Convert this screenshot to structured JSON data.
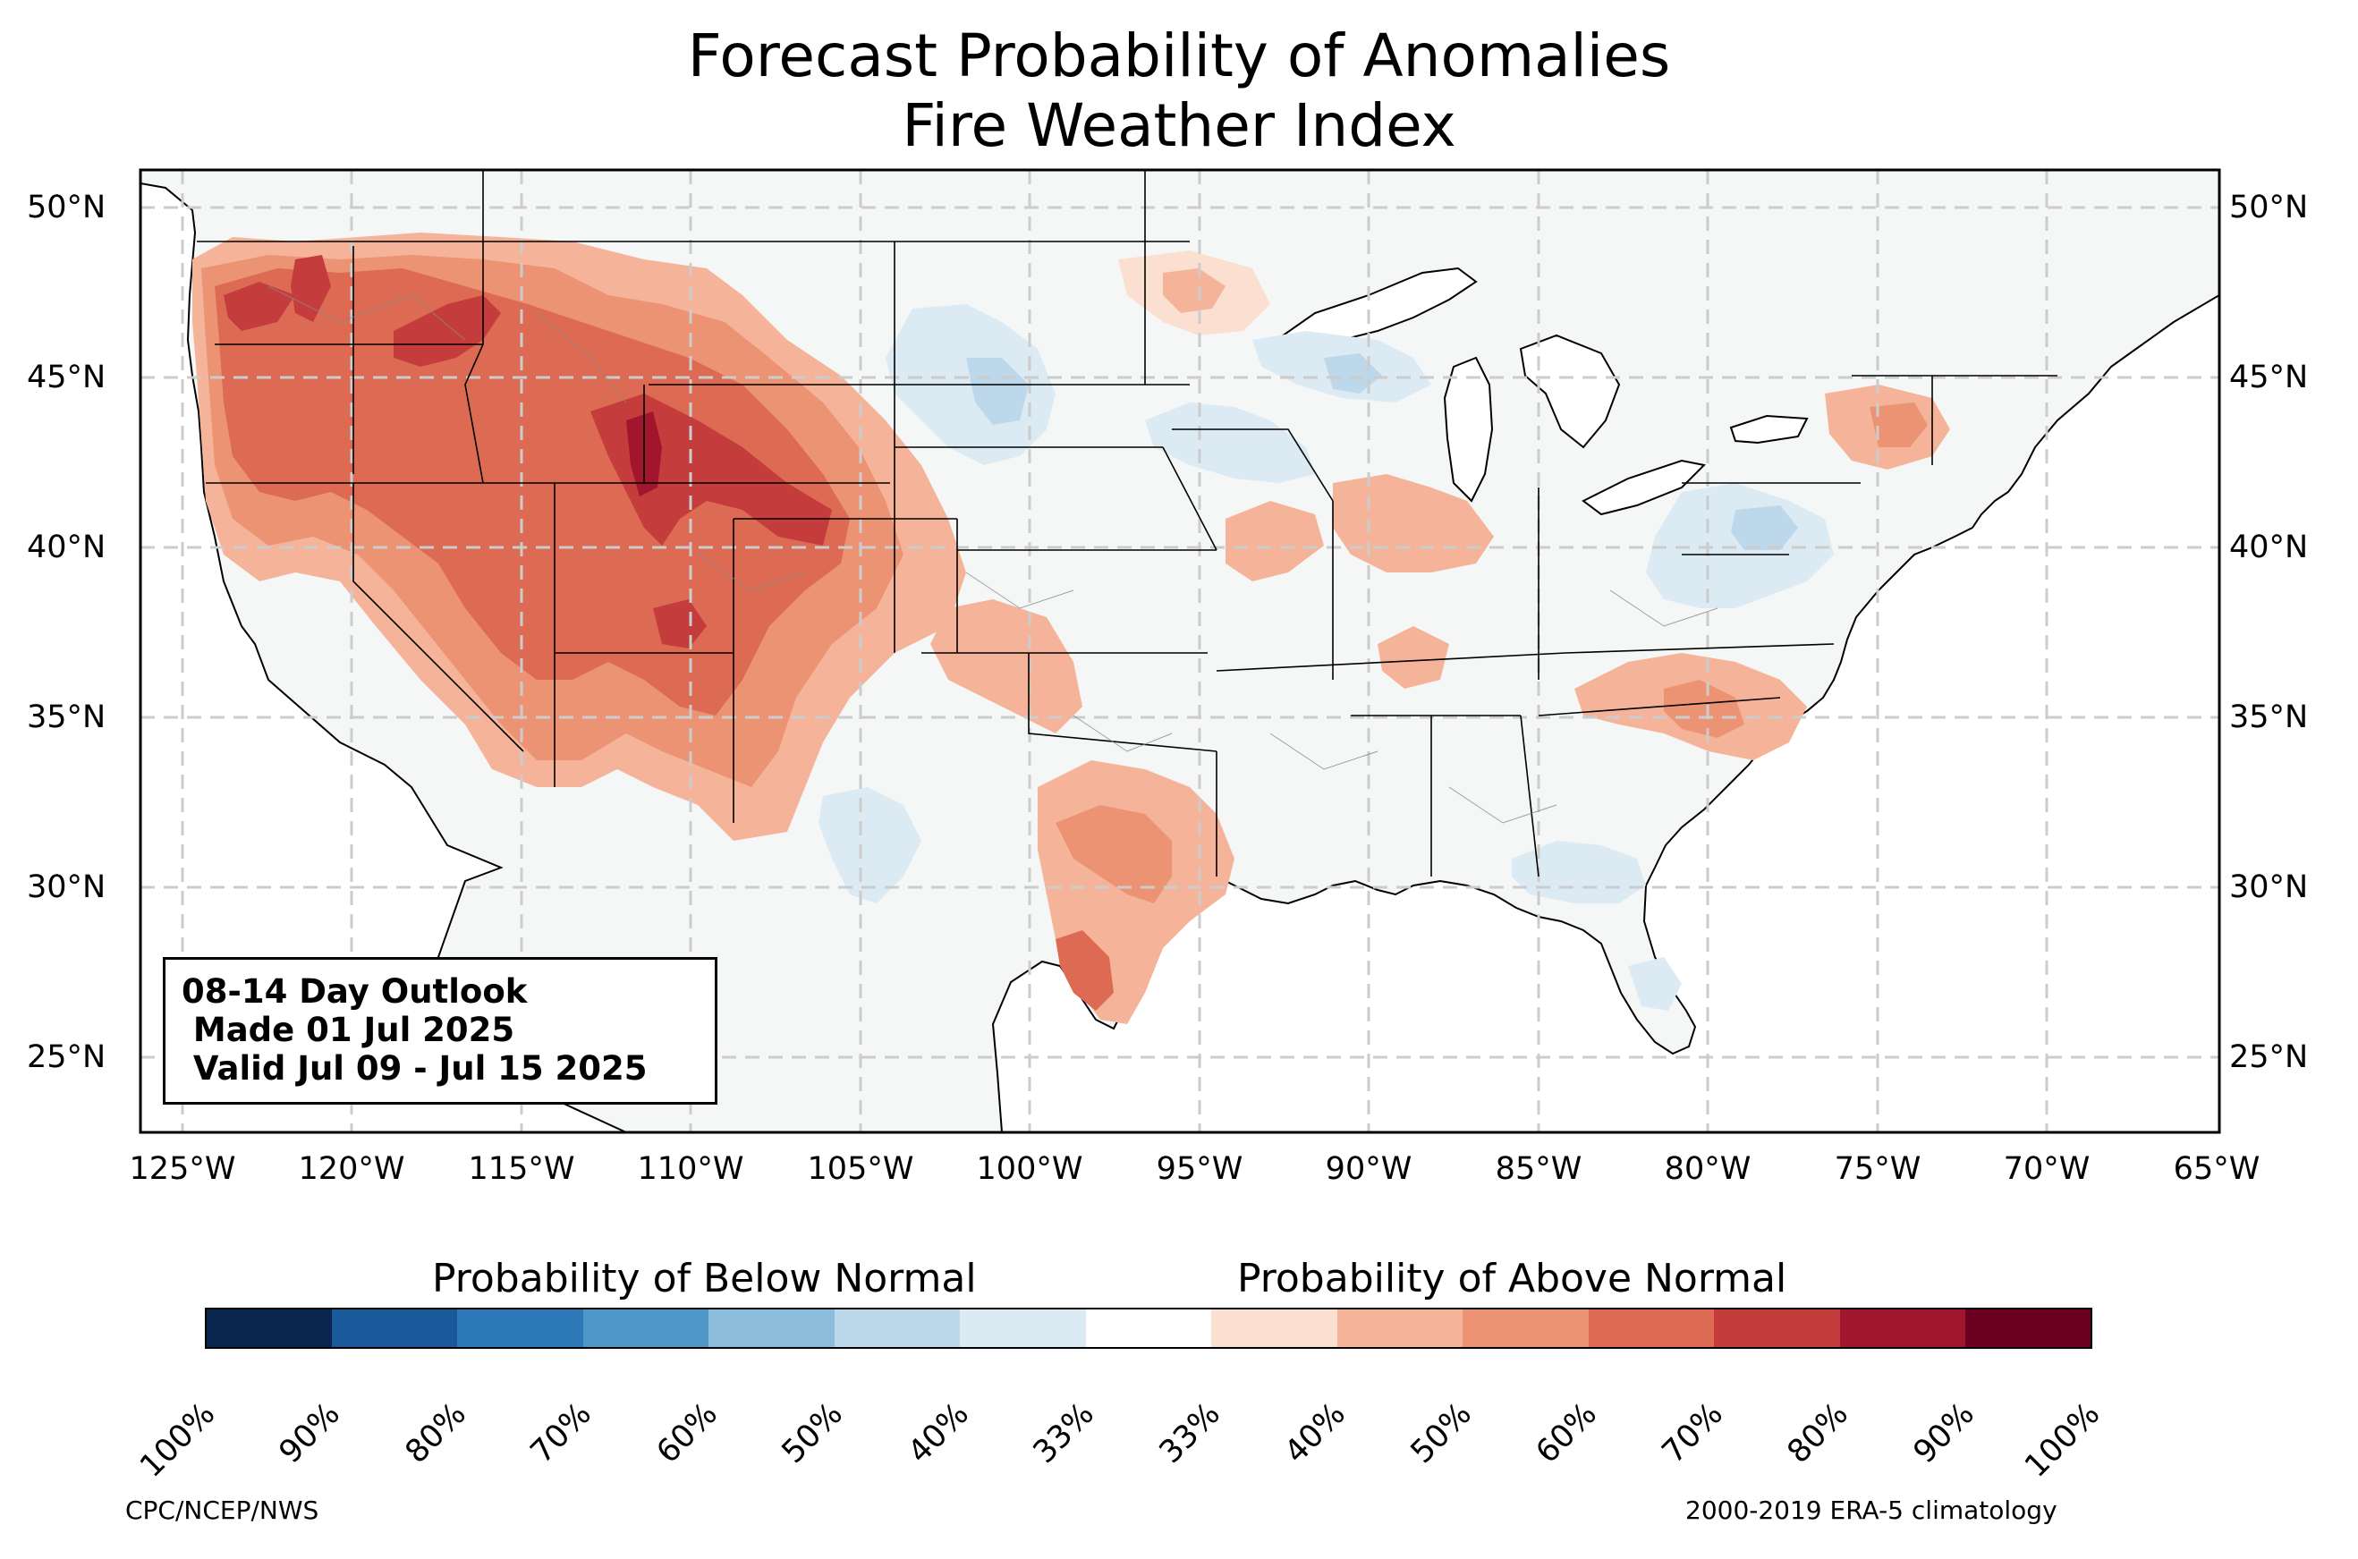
{
  "title_line1": "Forecast Probability of Anomalies",
  "title_line2": "Fire Weather Index",
  "lat_labels": [
    "50°N",
    "45°N",
    "40°N",
    "35°N",
    "30°N",
    "25°N"
  ],
  "lon_labels": [
    "125°W",
    "120°W",
    "115°W",
    "110°W",
    "105°W",
    "100°W",
    "95°W",
    "90°W",
    "85°W",
    "80°W",
    "75°W",
    "70°W",
    "65°W"
  ],
  "outlook": {
    "line1": "08-14 Day Outlook",
    "line2": " Made 01 Jul 2025",
    "line3": " Valid Jul 09 - Jul 15 2025"
  },
  "colorbar": {
    "below_title": "Probability of Below Normal",
    "above_title": "Probability of Above Normal",
    "ticks": [
      "100%",
      "90%",
      "80%",
      "70%",
      "60%",
      "50%",
      "40%",
      "33%",
      "33%",
      "40%",
      "50%",
      "60%",
      "70%",
      "80%",
      "90%",
      "100%"
    ],
    "colors": [
      "#08264d",
      "#1a5a9a",
      "#2e7ab8",
      "#4e98c9",
      "#8cbedc",
      "#bcd8ea",
      "#dceaf4",
      "#ffffff",
      "#fbdfd0",
      "#f5b49a",
      "#ec9373",
      "#dd6a53",
      "#c43c3c",
      "#a1162c",
      "#6b0020"
    ]
  },
  "credit_left": "CPC/NCEP/NWS",
  "credit_right": "2000-2019 ERA-5 climatology",
  "map_extent": {
    "lon": [
      -126.2,
      -64.9
    ],
    "lat": [
      22.8,
      51.1
    ]
  },
  "colors": {
    "land": "#f5f7f7",
    "ocean": "#ffffff",
    "gridline": "#cccccc",
    "above_40": "#fbdfd0",
    "above_50": "#f5b49a",
    "above_60": "#ec9373",
    "above_70": "#dd6a53",
    "above_80": "#c43c3c",
    "above_90": "#a1162c",
    "below_40": "#dceaf4",
    "below_50": "#bcd8ea"
  },
  "anomaly_regions": [
    {
      "name": "northwest-interior",
      "category": "above",
      "probability": 60
    },
    {
      "name": "northern-rockies",
      "category": "above",
      "probability": 80
    },
    {
      "name": "wyoming-utah",
      "category": "above",
      "probability": 70
    },
    {
      "name": "texas-south",
      "category": "above",
      "probability": 60
    },
    {
      "name": "northern-plains-upper-midwest",
      "category": "below",
      "probability": 40
    },
    {
      "name": "mid-atlantic",
      "category": "below",
      "probability": 40
    },
    {
      "name": "southeast-coast",
      "category": "below",
      "probability": 40
    }
  ]
}
